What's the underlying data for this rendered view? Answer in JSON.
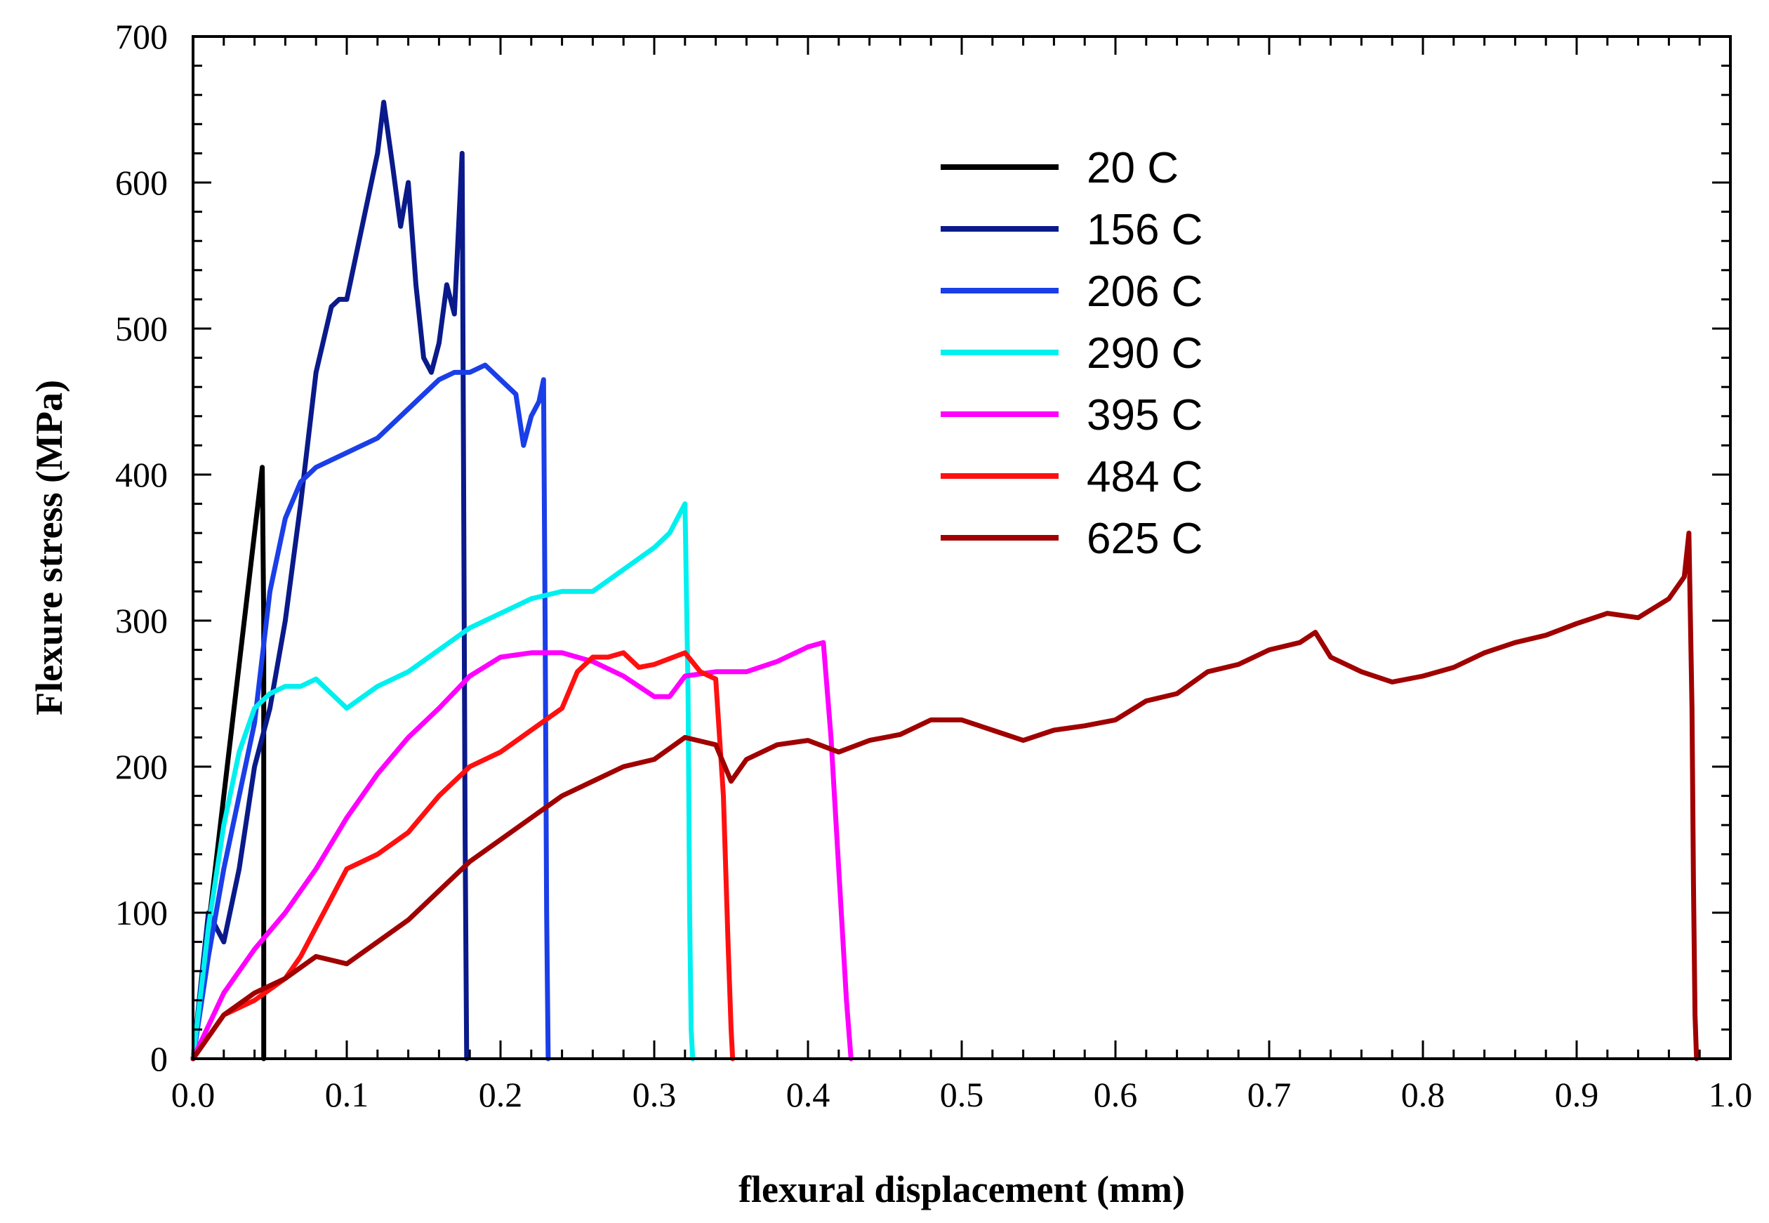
{
  "chart_data": {
    "type": "line",
    "title": "",
    "xlabel": "flexural displacement (mm)",
    "ylabel": "Flexure stress (MPa)",
    "xlim": [
      0.0,
      1.0
    ],
    "ylim": [
      0,
      700
    ],
    "xticks": [
      0.0,
      0.1,
      0.2,
      0.3,
      0.4,
      0.5,
      0.6,
      0.7,
      0.8,
      0.9,
      1.0
    ],
    "xtick_labels": [
      "0.0",
      "0.1",
      "0.2",
      "0.3",
      "0.4",
      "0.5",
      "0.6",
      "0.7",
      "0.8",
      "0.9",
      "1.0"
    ],
    "yticks": [
      0,
      100,
      200,
      300,
      400,
      500,
      600,
      700
    ],
    "ytick_labels": [
      "0",
      "100",
      "200",
      "300",
      "400",
      "500",
      "600",
      "700"
    ],
    "grid": false,
    "legend_position": "top-center",
    "series": [
      {
        "name": "20 C",
        "color": "#000000",
        "x": [
          0.0,
          0.01,
          0.02,
          0.03,
          0.04,
          0.045,
          0.046,
          0.046,
          0.046
        ],
        "y": [
          0,
          90,
          180,
          270,
          360,
          405,
          300,
          100,
          0
        ]
      },
      {
        "name": "156 C",
        "color": "#0a1a8a",
        "x": [
          0.0,
          0.01,
          0.02,
          0.03,
          0.04,
          0.05,
          0.06,
          0.07,
          0.08,
          0.09,
          0.095,
          0.1,
          0.11,
          0.12,
          0.124,
          0.13,
          0.135,
          0.14,
          0.145,
          0.15,
          0.155,
          0.16,
          0.165,
          0.17,
          0.175,
          0.176,
          0.177,
          0.178
        ],
        "y": [
          0,
          100,
          80,
          130,
          200,
          240,
          300,
          380,
          470,
          515,
          520,
          520,
          570,
          620,
          655,
          610,
          570,
          600,
          530,
          480,
          470,
          490,
          530,
          510,
          620,
          400,
          150,
          0
        ]
      },
      {
        "name": "206 C",
        "color": "#1a3ee8",
        "x": [
          0.0,
          0.01,
          0.02,
          0.03,
          0.04,
          0.05,
          0.06,
          0.07,
          0.08,
          0.09,
          0.1,
          0.12,
          0.14,
          0.16,
          0.17,
          0.18,
          0.19,
          0.2,
          0.21,
          0.215,
          0.22,
          0.225,
          0.228,
          0.229,
          0.23,
          0.231
        ],
        "y": [
          0,
          70,
          130,
          180,
          230,
          320,
          370,
          395,
          405,
          410,
          415,
          425,
          445,
          465,
          470,
          470,
          475,
          465,
          455,
          420,
          440,
          450,
          465,
          300,
          100,
          0
        ]
      },
      {
        "name": "290 C",
        "color": "#00f0f0",
        "x": [
          0.0,
          0.01,
          0.02,
          0.03,
          0.04,
          0.05,
          0.06,
          0.07,
          0.08,
          0.09,
          0.1,
          0.12,
          0.14,
          0.16,
          0.18,
          0.2,
          0.22,
          0.24,
          0.26,
          0.28,
          0.3,
          0.31,
          0.32,
          0.322,
          0.323,
          0.324,
          0.325
        ],
        "y": [
          0,
          90,
          160,
          210,
          240,
          250,
          255,
          255,
          260,
          250,
          240,
          255,
          265,
          280,
          295,
          305,
          315,
          320,
          320,
          335,
          350,
          360,
          380,
          250,
          100,
          20,
          0
        ]
      },
      {
        "name": "395 C",
        "color": "#ff00ff",
        "x": [
          0.0,
          0.02,
          0.04,
          0.06,
          0.08,
          0.1,
          0.12,
          0.14,
          0.16,
          0.18,
          0.2,
          0.22,
          0.24,
          0.26,
          0.28,
          0.3,
          0.31,
          0.32,
          0.34,
          0.36,
          0.38,
          0.4,
          0.41,
          0.415,
          0.42,
          0.425,
          0.428
        ],
        "y": [
          0,
          45,
          75,
          100,
          130,
          165,
          195,
          220,
          240,
          262,
          275,
          278,
          278,
          272,
          262,
          248,
          248,
          262,
          265,
          265,
          272,
          282,
          285,
          220,
          130,
          40,
          0
        ]
      },
      {
        "name": "484 C",
        "color": "#ff1010",
        "x": [
          0.0,
          0.02,
          0.04,
          0.06,
          0.07,
          0.08,
          0.09,
          0.1,
          0.12,
          0.14,
          0.16,
          0.18,
          0.2,
          0.22,
          0.24,
          0.25,
          0.26,
          0.27,
          0.28,
          0.29,
          0.3,
          0.32,
          0.33,
          0.34,
          0.345,
          0.348,
          0.35,
          0.351
        ],
        "y": [
          0,
          30,
          40,
          55,
          70,
          90,
          110,
          130,
          140,
          155,
          180,
          200,
          210,
          225,
          240,
          265,
          275,
          275,
          278,
          268,
          270,
          278,
          265,
          260,
          180,
          80,
          20,
          0
        ]
      },
      {
        "name": "625 C",
        "color": "#a00000",
        "x": [
          0.0,
          0.02,
          0.04,
          0.06,
          0.08,
          0.1,
          0.12,
          0.14,
          0.16,
          0.18,
          0.2,
          0.22,
          0.24,
          0.26,
          0.28,
          0.3,
          0.32,
          0.34,
          0.35,
          0.36,
          0.38,
          0.4,
          0.42,
          0.44,
          0.46,
          0.48,
          0.5,
          0.52,
          0.54,
          0.56,
          0.58,
          0.6,
          0.62,
          0.64,
          0.66,
          0.68,
          0.7,
          0.72,
          0.73,
          0.74,
          0.76,
          0.78,
          0.8,
          0.82,
          0.84,
          0.86,
          0.88,
          0.9,
          0.92,
          0.94,
          0.96,
          0.97,
          0.973,
          0.975,
          0.976,
          0.977,
          0.978
        ],
        "y": [
          0,
          30,
          45,
          55,
          70,
          65,
          80,
          95,
          115,
          135,
          150,
          165,
          180,
          190,
          200,
          205,
          220,
          215,
          190,
          205,
          215,
          218,
          210,
          218,
          222,
          232,
          232,
          225,
          218,
          225,
          228,
          232,
          245,
          250,
          265,
          270,
          280,
          285,
          292,
          275,
          265,
          258,
          262,
          268,
          278,
          285,
          290,
          298,
          305,
          302,
          315,
          330,
          360,
          240,
          120,
          30,
          0
        ]
      }
    ]
  }
}
